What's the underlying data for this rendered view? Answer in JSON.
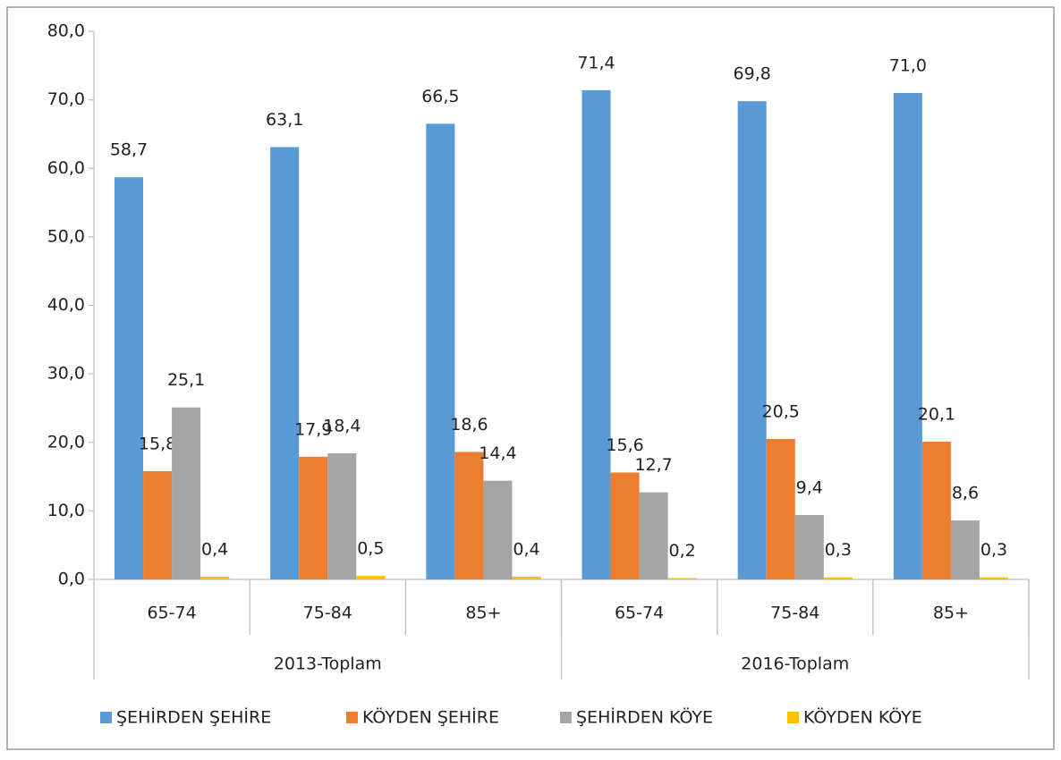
{
  "chart_data": {
    "type": "bar",
    "groups": [
      {
        "name": "2013-Toplam",
        "categories": [
          "65-74",
          "75-84",
          "85+"
        ]
      },
      {
        "name": "2016-Toplam",
        "categories": [
          "65-74",
          "75-84",
          "85+"
        ]
      }
    ],
    "series": [
      {
        "name": "ŞEHİRDEN ŞEHİRE",
        "color": "#5b9bd5",
        "values": [
          58.7,
          63.1,
          66.5,
          71.4,
          69.8,
          71.0
        ],
        "value_labels": [
          "58,7",
          "63,1",
          "66,5",
          "71,4",
          "69,8",
          "71,0"
        ]
      },
      {
        "name": "KÖYDEN ŞEHİRE",
        "color": "#ed7d31",
        "values": [
          15.8,
          17.9,
          18.6,
          15.6,
          20.5,
          20.1
        ],
        "value_labels": [
          "15,8",
          "17,9",
          "18,6",
          "15,6",
          "20,5",
          "20,1"
        ]
      },
      {
        "name": "ŞEHİRDEN KÖYE",
        "color": "#a5a5a5",
        "values": [
          25.1,
          18.4,
          14.4,
          12.7,
          9.4,
          8.6
        ],
        "value_labels": [
          "25,1",
          "18,4",
          "14,4",
          "12,7",
          "9,4",
          "8,6"
        ]
      },
      {
        "name": "KÖYDEN KÖYE",
        "color": "#ffc000",
        "values": [
          0.4,
          0.5,
          0.4,
          0.2,
          0.3,
          0.3
        ],
        "value_labels": [
          "0,4",
          "0,5",
          "0,4",
          "0,2",
          "0,3",
          "0,3"
        ]
      }
    ],
    "ylim": [
      0,
      80
    ],
    "yticks": [
      {
        "value": 0,
        "label": "0,0"
      },
      {
        "value": 10,
        "label": "10,0"
      },
      {
        "value": 20,
        "label": "20,0"
      },
      {
        "value": 30,
        "label": "30,0"
      },
      {
        "value": 40,
        "label": "40,0"
      },
      {
        "value": 50,
        "label": "50,0"
      },
      {
        "value": 60,
        "label": "60,0"
      },
      {
        "value": 70,
        "label": "70,0"
      },
      {
        "value": 80,
        "label": "80,0"
      }
    ],
    "legend": "bottom"
  }
}
